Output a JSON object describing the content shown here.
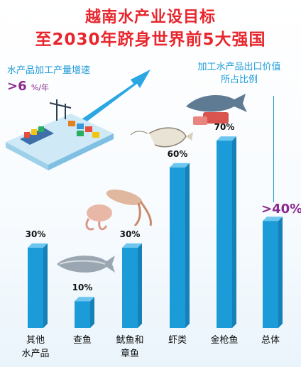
{
  "header": {
    "title_line1": "越南水产业设目标",
    "title_line2": "至2030年跻身世界前5大强国"
  },
  "growth": {
    "label": "水产品加工产量增速",
    "value": ">6",
    "unit": "%/年"
  },
  "export_share": {
    "label_line1": "加工水产品出口价值",
    "label_line2": "所占比例"
  },
  "colors": {
    "title": "#e8262d",
    "bar": "#1b9bd8",
    "accent": "#8a2a8f"
  },
  "chart_data": {
    "type": "bar",
    "categories": [
      [
        "其他",
        "水产品"
      ],
      [
        "查鱼"
      ],
      [
        "鱿鱼和",
        "章鱼"
      ],
      [
        "虾类"
      ],
      [
        "金枪鱼"
      ],
      [
        "总体"
      ]
    ],
    "values": [
      30,
      10,
      30,
      60,
      70,
      40
    ],
    "value_labels": [
      "30%",
      "10%",
      "30%",
      "60%",
      "70%",
      ">40%"
    ],
    "ylim": [
      0,
      100
    ]
  }
}
